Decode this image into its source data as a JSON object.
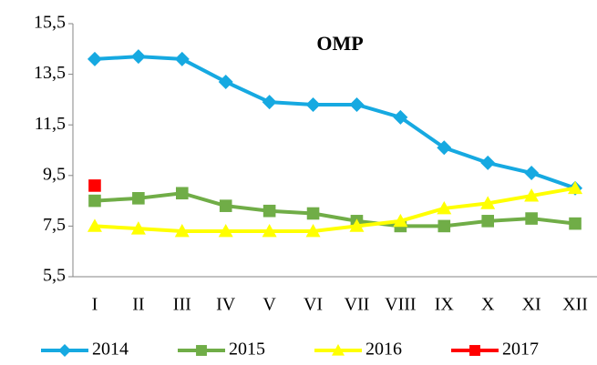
{
  "chart_data": {
    "type": "line",
    "title": "OMP",
    "categories": [
      "I",
      "II",
      "III",
      "IV",
      "V",
      "VI",
      "VII",
      "VIII",
      "IX",
      "X",
      "XI",
      "XII"
    ],
    "series": [
      {
        "name": "2014",
        "color": "#16a9e1",
        "marker": "diamond",
        "values": [
          14.1,
          14.2,
          14.1,
          13.2,
          12.4,
          12.3,
          12.3,
          11.8,
          10.6,
          10.0,
          9.6,
          9.0
        ]
      },
      {
        "name": "2015",
        "color": "#70ad47",
        "marker": "square",
        "values": [
          8.5,
          8.6,
          8.8,
          8.3,
          8.1,
          8.0,
          7.7,
          7.5,
          7.5,
          7.7,
          7.8,
          7.6
        ]
      },
      {
        "name": "2016",
        "color": "#ffff00",
        "marker": "triangle",
        "values": [
          7.5,
          7.4,
          7.3,
          7.3,
          7.3,
          7.3,
          7.5,
          7.7,
          8.2,
          8.4,
          8.7,
          9.0
        ]
      },
      {
        "name": "2017",
        "color": "#ff0000",
        "marker": "square",
        "values": [
          9.1,
          null,
          null,
          null,
          null,
          null,
          null,
          null,
          null,
          null,
          null,
          null
        ]
      }
    ],
    "ylim": [
      5.5,
      15.5
    ],
    "yticks": [
      {
        "value": 5.5,
        "label": "5,5"
      },
      {
        "value": 7.5,
        "label": "7,5"
      },
      {
        "value": 9.5,
        "label": "9,5"
      },
      {
        "value": 11.5,
        "label": "11,5"
      },
      {
        "value": 13.5,
        "label": "13,5"
      },
      {
        "value": 15.5,
        "label": "15,5"
      }
    ],
    "grid": false,
    "legend": "bottom"
  }
}
